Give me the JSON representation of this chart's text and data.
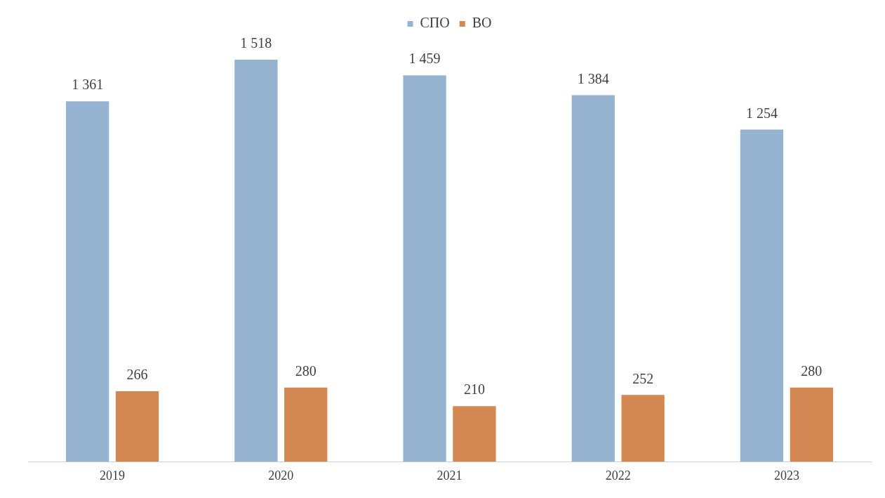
{
  "chart_data": {
    "type": "bar",
    "categories": [
      "2019",
      "2020",
      "2021",
      "2022",
      "2023"
    ],
    "series": [
      {
        "name": "СПО",
        "color": "#95b3d0",
        "values": [
          1361,
          1518,
          1459,
          1384,
          1254
        ],
        "value_labels": [
          "1 361",
          "1 518",
          "1 459",
          "1 384",
          "1 254"
        ]
      },
      {
        "name": "ВО",
        "color": "#d38752",
        "values": [
          266,
          280,
          210,
          252,
          280
        ],
        "value_labels": [
          "266",
          "280",
          "210",
          "252",
          "280"
        ]
      }
    ],
    "legend": "top",
    "grid": false
  }
}
